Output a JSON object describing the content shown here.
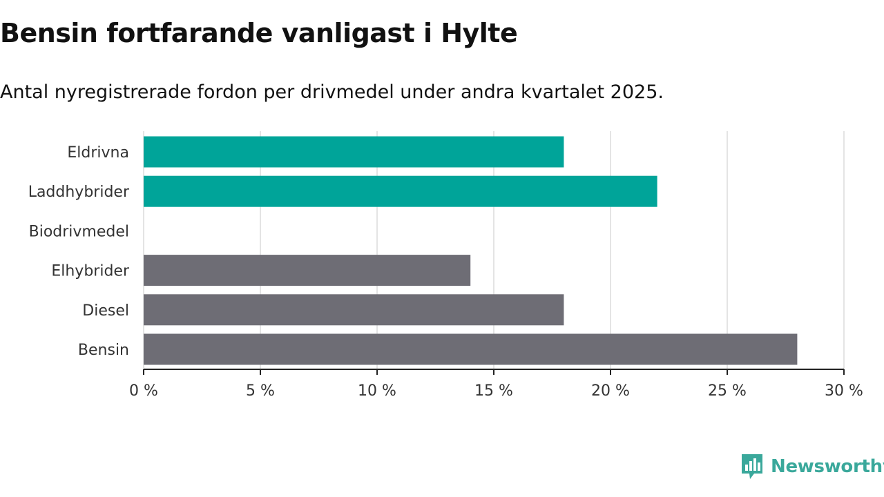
{
  "title": "Bensin fortfarande vanligast i Hylte",
  "subtitle": "Antal nyregistrerade fordon per drivmedel under andra kvartalet 2025.",
  "brand": {
    "name": "Newsworthy",
    "icon": "newsworthy-logo-icon",
    "color": "#3aa89b"
  },
  "chart_data": {
    "type": "bar",
    "orientation": "horizontal",
    "categories": [
      "Eldrivna",
      "Laddhybrider",
      "Biodrivmedel",
      "Elhybrider",
      "Diesel",
      "Bensin"
    ],
    "values": [
      18,
      22,
      0,
      14,
      18,
      28
    ],
    "colors": [
      "#00a499",
      "#00a499",
      "#00a499",
      "#6e6d75",
      "#6e6d75",
      "#6e6d75"
    ],
    "xlim": [
      0,
      30
    ],
    "xticks": [
      0,
      5,
      10,
      15,
      20,
      25,
      30
    ],
    "xtick_labels": [
      "0 %",
      "5 %",
      "10 %",
      "15 %",
      "20 %",
      "25 %",
      "30 %"
    ],
    "xlabel": "",
    "ylabel": "",
    "grid": "vertical"
  }
}
